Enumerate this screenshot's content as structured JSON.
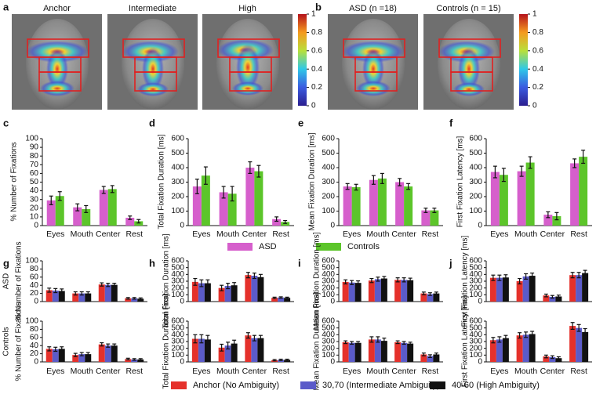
{
  "heatmaps": [
    {
      "label": "a",
      "images": [
        "Anchor",
        "Intermediate",
        "High"
      ],
      "colorbar": {
        "lim": [
          0,
          1
        ],
        "ticks": [
          0,
          0.2,
          0.4,
          0.6,
          0.8,
          1
        ]
      }
    },
    {
      "label": "b",
      "images": [
        "ASD (n =18)",
        "Controls (n = 15)"
      ],
      "colorbar": {
        "lim": [
          0,
          1
        ],
        "ticks": [
          0,
          0.2,
          0.4,
          0.6,
          0.8,
          1
        ]
      }
    }
  ],
  "chart_data": [
    {
      "type": "bar",
      "series": [
        {
          "name": "ASD",
          "color": "#d65fcc"
        },
        {
          "name": "Controls",
          "color": "#5cc52a"
        }
      ],
      "panels": [
        {
          "label": "c",
          "ylabel": "% Number of Fixations",
          "ylim": [
            0,
            100
          ],
          "yticks": [
            0,
            10,
            20,
            30,
            40,
            50,
            60,
            70,
            80,
            90,
            100
          ],
          "categories": [
            "Eyes",
            "Mouth",
            "Center",
            "Rest"
          ],
          "values": [
            [
              29,
              21,
              41,
              9
            ],
            [
              34,
              19,
              42,
              5
            ]
          ],
          "errors": [
            [
              5,
              4,
              4,
              2
            ],
            [
              5,
              4,
              4,
              2
            ]
          ]
        },
        {
          "label": "d",
          "ylabel": "Total Fixation Duration [ms]",
          "ylim": [
            0,
            600
          ],
          "yticks": [
            0,
            100,
            200,
            300,
            400,
            500,
            600
          ],
          "categories": [
            "Eyes",
            "Mouth",
            "Center",
            "Rest"
          ],
          "values": [
            [
              270,
              230,
              400,
              45
            ],
            [
              345,
              220,
              375,
              25
            ]
          ],
          "errors": [
            [
              50,
              40,
              40,
              15
            ],
            [
              60,
              50,
              40,
              10
            ]
          ]
        },
        {
          "label": "e",
          "ylabel": "Mean Fixation Duration [ms]",
          "ylim": [
            0,
            600
          ],
          "yticks": [
            0,
            100,
            200,
            300,
            400,
            500,
            600
          ],
          "categories": [
            "Eyes",
            "Mouth",
            "Center",
            "Rest"
          ],
          "values": [
            [
              270,
              315,
              300,
              105
            ],
            [
              265,
              325,
              270,
              105
            ]
          ],
          "errors": [
            [
              20,
              30,
              25,
              15
            ],
            [
              20,
              35,
              20,
              15
            ]
          ]
        },
        {
          "label": "f",
          "ylabel": "First Fixation Latency [ms]",
          "ylim": [
            0,
            600
          ],
          "yticks": [
            0,
            100,
            200,
            300,
            400,
            500,
            600
          ],
          "categories": [
            "Eyes",
            "Mouth",
            "Center",
            "Rest"
          ],
          "values": [
            [
              370,
              375,
              75,
              430
            ],
            [
              350,
              435,
              65,
              475
            ]
          ],
          "errors": [
            [
              40,
              35,
              20,
              30
            ],
            [
              45,
              40,
              25,
              45
            ]
          ]
        }
      ]
    },
    {
      "type": "bar-rows",
      "rows": [
        "ASD",
        "Controls"
      ],
      "series": [
        {
          "name": "Anchor (No Ambiguity)",
          "color": "#e5312b"
        },
        {
          "name": "30,70 (Intermediate Ambiguity)",
          "color": "#5b5bc9"
        },
        {
          "name": "40-60 (High Ambiguity)",
          "color": "#111111"
        }
      ],
      "panels": [
        {
          "label": "g",
          "categories": [
            "Eyes",
            "Mouth",
            "Center",
            "Rest"
          ],
          "subplots": [
            {
              "ylabel": "% Number of Fixations",
              "ylim": [
                0,
                100
              ],
              "yticks": [
                0,
                20,
                40,
                60,
                80,
                100
              ],
              "values": [
                [
                  28,
                  20,
                  42,
                  8
                ],
                [
                  27,
                  20,
                  41,
                  8
                ],
                [
                  26,
                  20,
                  41,
                  7
                ]
              ],
              "errors": [
                [
                  5,
                  4,
                  4,
                  2
                ],
                [
                  5,
                  4,
                  4,
                  2
                ],
                [
                  5,
                  4,
                  4,
                  2
                ]
              ]
            },
            {
              "ylabel": "% Number of Fixations",
              "ylim": [
                0,
                100
              ],
              "yticks": [
                0,
                20,
                40,
                60,
                80,
                100
              ],
              "values": [
                [
                  32,
                  17,
                  43,
                  7
                ],
                [
                  31,
                  19,
                  40,
                  6
                ],
                [
                  32,
                  19,
                  40,
                  6
                ]
              ],
              "errors": [
                [
                  5,
                  4,
                  4,
                  2
                ],
                [
                  5,
                  4,
                  4,
                  2
                ],
                [
                  5,
                  4,
                  4,
                  2
                ]
              ]
            }
          ]
        },
        {
          "label": "h",
          "categories": [
            "Eyes",
            "Mouth",
            "Center",
            "Rest"
          ],
          "subplots": [
            {
              "ylabel": "Total Fixation Duration [ms]",
              "ylim": [
                0,
                600
              ],
              "yticks": [
                0,
                100,
                200,
                300,
                400,
                500,
                600
              ],
              "values": [
                [
                  290,
                  200,
                  390,
                  55
                ],
                [
                  270,
                  230,
                  380,
                  60
                ],
                [
                  270,
                  240,
                  360,
                  55
                ]
              ],
              "errors": [
                [
                  50,
                  40,
                  40,
                  10
                ],
                [
                  50,
                  40,
                  40,
                  10
                ],
                [
                  50,
                  40,
                  40,
                  10
                ]
              ]
            },
            {
              "ylabel": "Total Fixation Duration [ms]",
              "ylim": [
                0,
                600
              ],
              "yticks": [
                0,
                100,
                200,
                300,
                400,
                500,
                600
              ],
              "values": [
                [
                  340,
                  210,
                  390,
                  25
                ],
                [
                  340,
                  240,
                  350,
                  30
                ],
                [
                  330,
                  270,
                  350,
                  30
                ]
              ],
              "errors": [
                [
                  60,
                  50,
                  40,
                  10
                ],
                [
                  60,
                  50,
                  40,
                  10
                ],
                [
                  60,
                  50,
                  40,
                  10
                ]
              ]
            }
          ]
        },
        {
          "label": "i",
          "categories": [
            "Eyes",
            "Mouth",
            "Center",
            "Rest"
          ],
          "subplots": [
            {
              "ylabel": "Mean Fixation Duration [ms]",
              "ylim": [
                0,
                600
              ],
              "yticks": [
                0,
                100,
                200,
                300,
                400,
                500,
                600
              ],
              "values": [
                [
                  290,
                  310,
                  320,
                  120
                ],
                [
                  280,
                  330,
                  320,
                  110
                ],
                [
                  275,
                  340,
                  315,
                  120
                ]
              ],
              "errors": [
                [
                  30,
                  30,
                  30,
                  20
                ],
                [
                  30,
                  30,
                  30,
                  20
                ],
                [
                  30,
                  30,
                  30,
                  20
                ]
              ]
            },
            {
              "ylabel": "Mean Fixation Duration [ms]",
              "ylim": [
                0,
                600
              ],
              "yticks": [
                0,
                100,
                200,
                300,
                400,
                500,
                600
              ],
              "values": [
                [
                  290,
                  330,
                  290,
                  110
                ],
                [
                  280,
                  330,
                  280,
                  85
                ],
                [
                  280,
                  310,
                  270,
                  110
                ]
              ],
              "errors": [
                [
                  20,
                  40,
                  20,
                  20
                ],
                [
                  20,
                  40,
                  20,
                  20
                ],
                [
                  20,
                  40,
                  20,
                  20
                ]
              ]
            }
          ]
        },
        {
          "label": "j",
          "categories": [
            "Eyes",
            "Mouth",
            "Center",
            "Rest"
          ],
          "subplots": [
            {
              "ylabel": "First Fixation Latency [ms]",
              "ylim": [
                0,
                600
              ],
              "yticks": [
                0,
                100,
                200,
                300,
                400,
                500,
                600
              ],
              "values": [
                [
                  350,
                  300,
                  90,
                  390
                ],
                [
                  350,
                  370,
                  70,
                  390
                ],
                [
                  355,
                  380,
                  75,
                  420
                ]
              ],
              "errors": [
                [
                  40,
                  40,
                  20,
                  40
                ],
                [
                  40,
                  40,
                  20,
                  40
                ],
                [
                  40,
                  40,
                  20,
                  40
                ]
              ]
            },
            {
              "ylabel": "First Fixation Latency [ms]",
              "ylim": [
                0,
                600
              ],
              "yticks": [
                0,
                100,
                200,
                300,
                400,
                500,
                600
              ],
              "values": [
                [
                  320,
                  390,
                  80,
                  530
                ],
                [
                  330,
                  400,
                  70,
                  500
                ],
                [
                  350,
                  410,
                  55,
                  440
                ]
              ],
              "errors": [
                [
                  40,
                  40,
                  20,
                  50
                ],
                [
                  40,
                  40,
                  20,
                  50
                ],
                [
                  40,
                  40,
                  20,
                  50
                ]
              ]
            }
          ]
        }
      ]
    }
  ]
}
